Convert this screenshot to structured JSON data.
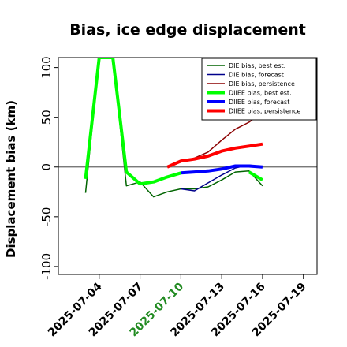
{
  "chart_data": {
    "type": "line",
    "title": "Bias, ice edge displacement",
    "ylabel": "Displacement bias (km)",
    "xlabel": "",
    "ylim": [
      -108,
      110
    ],
    "xlim": [
      "2025-07-01",
      "2025-07-20"
    ],
    "yticks": [
      "-100",
      "-50",
      "0",
      "50",
      "100"
    ],
    "xticks": [
      "2025-07-04",
      "2025-07-07",
      "2025-07-10",
      "2025-07-13",
      "2025-07-16",
      "2025-07-19"
    ],
    "highlight_tick": "2025-07-10",
    "highlight_color": "#228b22",
    "zero_line_color": "#666666",
    "legend_position": "top-right",
    "grid": false,
    "series": [
      {
        "name": "DIE bias, best est.",
        "color": "#006400",
        "width": 1.5,
        "x": [
          "2025-07-03",
          "2025-07-04",
          "2025-07-05",
          "2025-07-06",
          "2025-07-07",
          "2025-07-08",
          "2025-07-09",
          "2025-07-10",
          "2025-07-11",
          "2025-07-12",
          "2025-07-13",
          "2025-07-14",
          "2025-07-15",
          "2025-07-16"
        ],
        "y": [
          -26,
          110,
          110,
          -19,
          -15,
          -30,
          -25,
          -22,
          -22,
          -20,
          -13,
          -5,
          -4,
          -19
        ]
      },
      {
        "name": "DIE bias, forecast",
        "color": "#00008b",
        "width": 1.5,
        "x": [
          "2025-07-10",
          "2025-07-11",
          "2025-07-12",
          "2025-07-13",
          "2025-07-14",
          "2025-07-15",
          "2025-07-16"
        ],
        "y": [
          -22,
          -24,
          -16,
          -8,
          -1,
          2,
          0
        ]
      },
      {
        "name": "DIE bias, persistence",
        "color": "#8b0000",
        "width": 1.5,
        "x": [
          "2025-07-09",
          "2025-07-10",
          "2025-07-11",
          "2025-07-12",
          "2025-07-13",
          "2025-07-14",
          "2025-07-15",
          "2025-07-16"
        ],
        "y": [
          0,
          5,
          9,
          15,
          27,
          38,
          45,
          55
        ]
      },
      {
        "name": "DIIEE bias, best est.",
        "color": "#00ff00",
        "width": 4,
        "x": [
          "2025-07-03",
          "2025-07-04",
          "2025-07-05",
          "2025-07-06",
          "2025-07-07",
          "2025-07-08",
          "2025-07-09",
          "2025-07-10"
        ],
        "y": [
          -12,
          110,
          110,
          -5,
          -17,
          -15,
          -10,
          -6
        ]
      },
      {
        "name": "DIIEE bias, forecast",
        "color": "#0000ff",
        "width": 4,
        "x": [
          "2025-07-10",
          "2025-07-11",
          "2025-07-12",
          "2025-07-13",
          "2025-07-14",
          "2025-07-15",
          "2025-07-16"
        ],
        "y": [
          -6,
          -5,
          -4,
          -2,
          1,
          1,
          0
        ]
      },
      {
        "name": "DIIEE bias, persistence",
        "color": "#ff0000",
        "width": 4,
        "x": [
          "2025-07-09",
          "2025-07-10",
          "2025-07-11",
          "2025-07-12",
          "2025-07-13",
          "2025-07-14",
          "2025-07-15",
          "2025-07-16"
        ],
        "y": [
          0,
          6,
          8,
          11,
          16,
          19,
          21,
          23
        ]
      }
    ],
    "extra_segments": [
      {
        "series": "DIIEE bias, best est.",
        "color": "#00ff00",
        "width": 4,
        "x": [
          "2025-07-15",
          "2025-07-16"
        ],
        "y": [
          -5,
          -13
        ]
      }
    ]
  }
}
